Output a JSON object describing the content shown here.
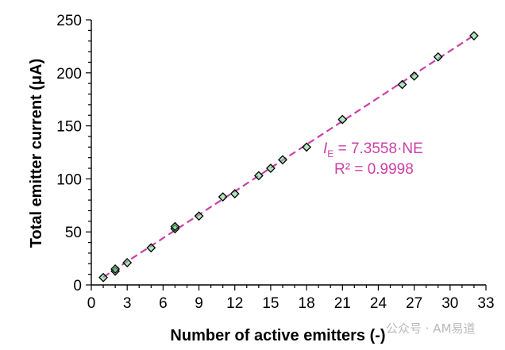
{
  "chart_data": {
    "type": "scatter",
    "xlabel": "Number of active emitters (-)",
    "ylabel": "Total emitter current (μA)",
    "xlim": [
      0,
      33
    ],
    "ylim": [
      0,
      250
    ],
    "x_ticks": [
      0,
      3,
      6,
      9,
      12,
      15,
      18,
      21,
      24,
      27,
      30,
      33
    ],
    "y_ticks": [
      0,
      50,
      100,
      150,
      200,
      250
    ],
    "grid": false,
    "series": [
      {
        "marker": "diamond",
        "points": [
          {
            "x": 1,
            "y": 7
          },
          {
            "x": 2,
            "y": 13
          },
          {
            "x": 2,
            "y": 15
          },
          {
            "x": 3,
            "y": 21
          },
          {
            "x": 5,
            "y": 35
          },
          {
            "x": 7,
            "y": 53
          },
          {
            "x": 7,
            "y": 55
          },
          {
            "x": 9,
            "y": 65
          },
          {
            "x": 11,
            "y": 83
          },
          {
            "x": 12,
            "y": 86
          },
          {
            "x": 14,
            "y": 103
          },
          {
            "x": 15,
            "y": 110
          },
          {
            "x": 16,
            "y": 118
          },
          {
            "x": 18,
            "y": 130
          },
          {
            "x": 21,
            "y": 156
          },
          {
            "x": 26,
            "y": 189
          },
          {
            "x": 27,
            "y": 197
          },
          {
            "x": 29,
            "y": 215
          },
          {
            "x": 32,
            "y": 235
          }
        ]
      }
    ],
    "fit": {
      "slope": 7.3558,
      "x_range": [
        1,
        32
      ],
      "equation_var": "I",
      "equation_sub": "E",
      "equation_rest": " = 7.3558·NE",
      "r2_label": "R² = 0.9998"
    }
  },
  "watermark": "公众号 · AM易道",
  "colors": {
    "fit": "#cc3fa6",
    "marker_fill": "#6ed28a",
    "marker_stroke": "#000000"
  }
}
